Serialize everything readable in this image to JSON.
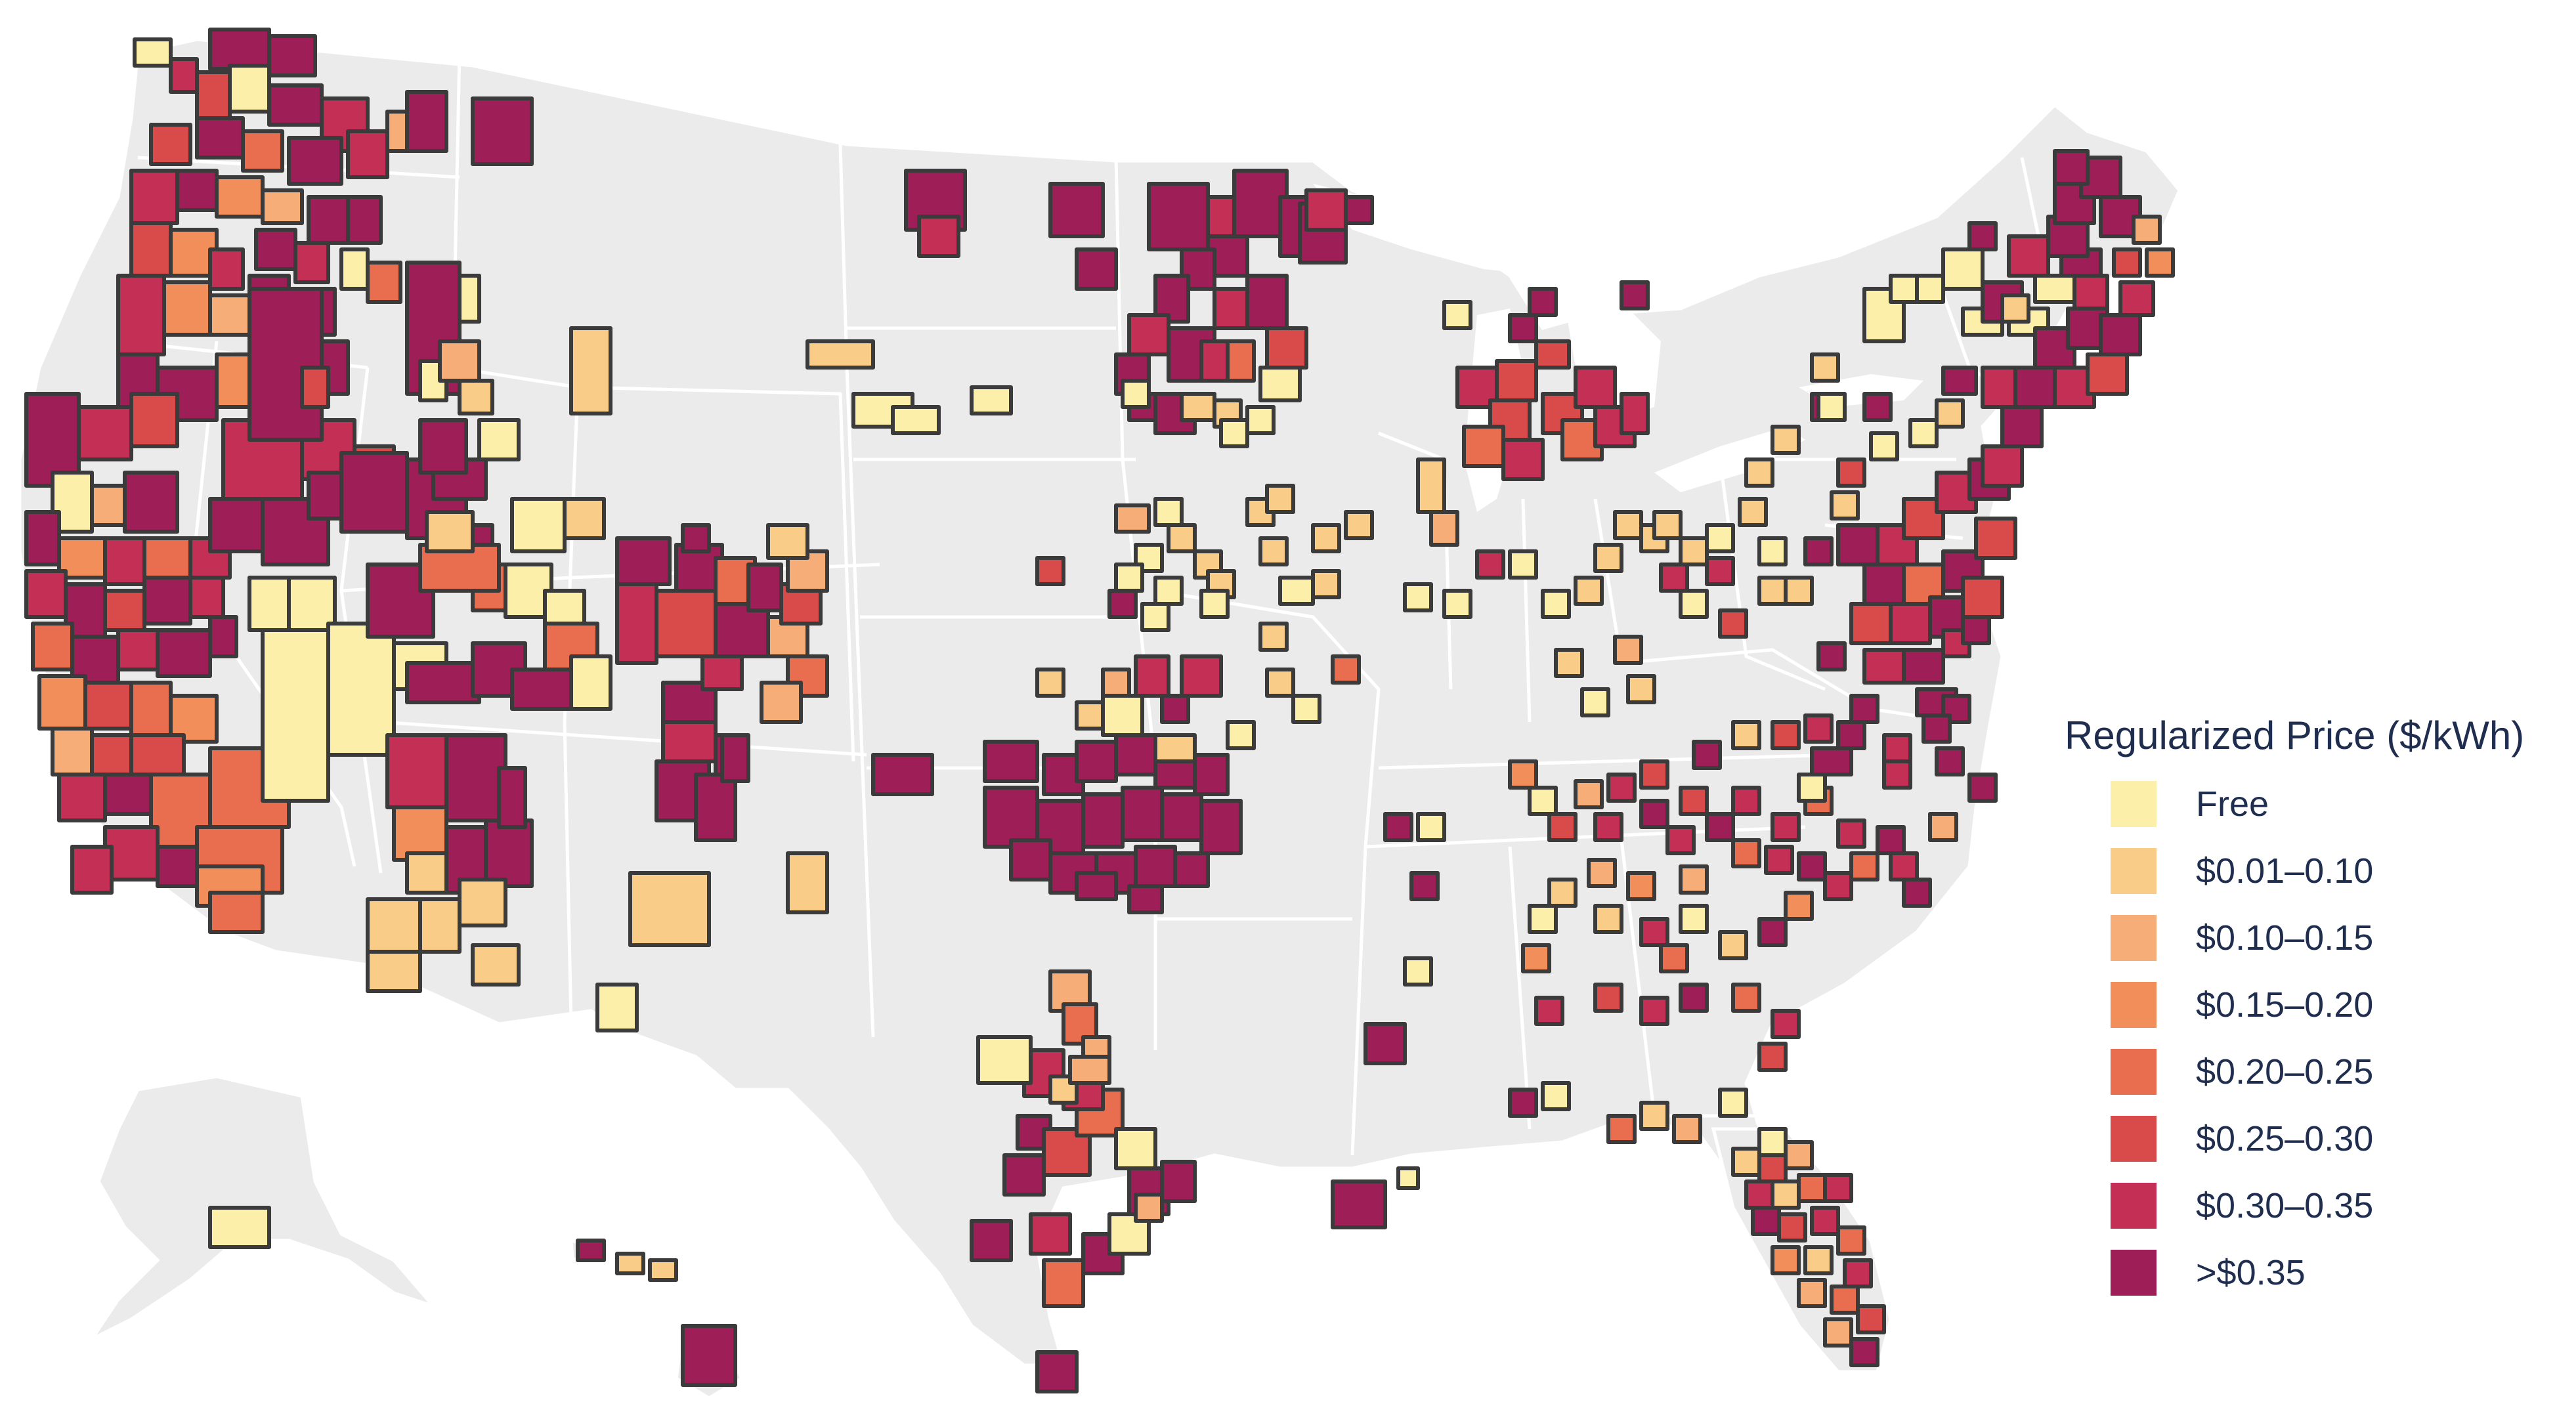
{
  "legend": {
    "title": "Regularized Price ($/kWh)",
    "items": [
      {
        "label": "Free",
        "color": "#fcefaa"
      },
      {
        "label": "$0.01–0.10",
        "color": "#f9cd87"
      },
      {
        "label": "$0.10–0.15",
        "color": "#f7ad77"
      },
      {
        "label": "$0.15–0.20",
        "color": "#f28e5a"
      },
      {
        "label": "$0.20–0.25",
        "color": "#e96d4f"
      },
      {
        "label": "$0.25–0.30",
        "color": "#d94a4a"
      },
      {
        "label": "$0.30–0.35",
        "color": "#c42f56"
      },
      {
        "label": ">$0.35",
        "color": "#9e1e58"
      }
    ]
  },
  "colors": {
    "land": "#ebebeb",
    "state_border": "#ffffff",
    "tile_outline": "#3b3b3b",
    "legend_text": "#1f2d4e"
  }
}
